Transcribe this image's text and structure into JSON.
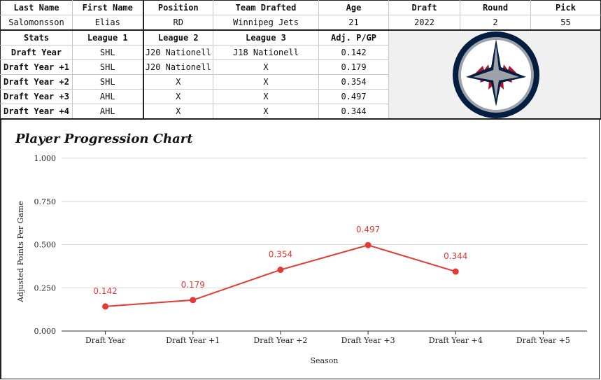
{
  "table": {
    "player_header": [
      "Last Name",
      "First Name",
      "Position",
      "Team Drafted",
      "Age",
      "Draft",
      "Round",
      "Pick"
    ],
    "player_values": [
      "Salomonsson",
      "Elias",
      "RD",
      "Winnipeg Jets",
      "21",
      "2022",
      "2",
      "55"
    ],
    "stats_header": [
      "Stats",
      "League 1",
      "League 2",
      "League 3",
      "Adj. P/GP"
    ],
    "stats_rows": [
      [
        "Draft Year",
        "SHL",
        "J20 Nationell",
        "J18 Nationell",
        "0.142"
      ],
      [
        "Draft Year +1",
        "SHL",
        "J20 Nationell",
        "X",
        "0.179"
      ],
      [
        "Draft Year +2",
        "SHL",
        "X",
        "X",
        "0.354"
      ],
      [
        "Draft Year +3",
        "AHL",
        "X",
        "X",
        "0.497"
      ],
      [
        "Draft Year +4",
        "AHL",
        "X",
        "X",
        "0.344"
      ]
    ]
  },
  "logo": {
    "name": "winnipeg-jets-logo",
    "colors": {
      "navy": "#041e42",
      "silver": "#9da3a8",
      "red": "#ac162c",
      "white": "#ffffff"
    }
  },
  "chart_data": {
    "type": "line",
    "title": "Player Progression Chart",
    "xlabel": "Season",
    "ylabel": "Adjusted Points Per Game",
    "categories": [
      "Draft Year",
      "Draft Year +1",
      "Draft Year +2",
      "Draft Year +3",
      "Draft Year +4",
      "Draft Year +5"
    ],
    "values": [
      0.142,
      0.179,
      0.354,
      0.497,
      0.344,
      null
    ],
    "data_labels": [
      "0.142",
      "0.179",
      "0.354",
      "0.497",
      "0.344",
      ""
    ],
    "y_ticks": [
      "0.000",
      "0.250",
      "0.500",
      "0.750",
      "1.000"
    ],
    "ylim": [
      0,
      1
    ],
    "grid": true,
    "legend": "none",
    "line_color": "#e53935"
  }
}
